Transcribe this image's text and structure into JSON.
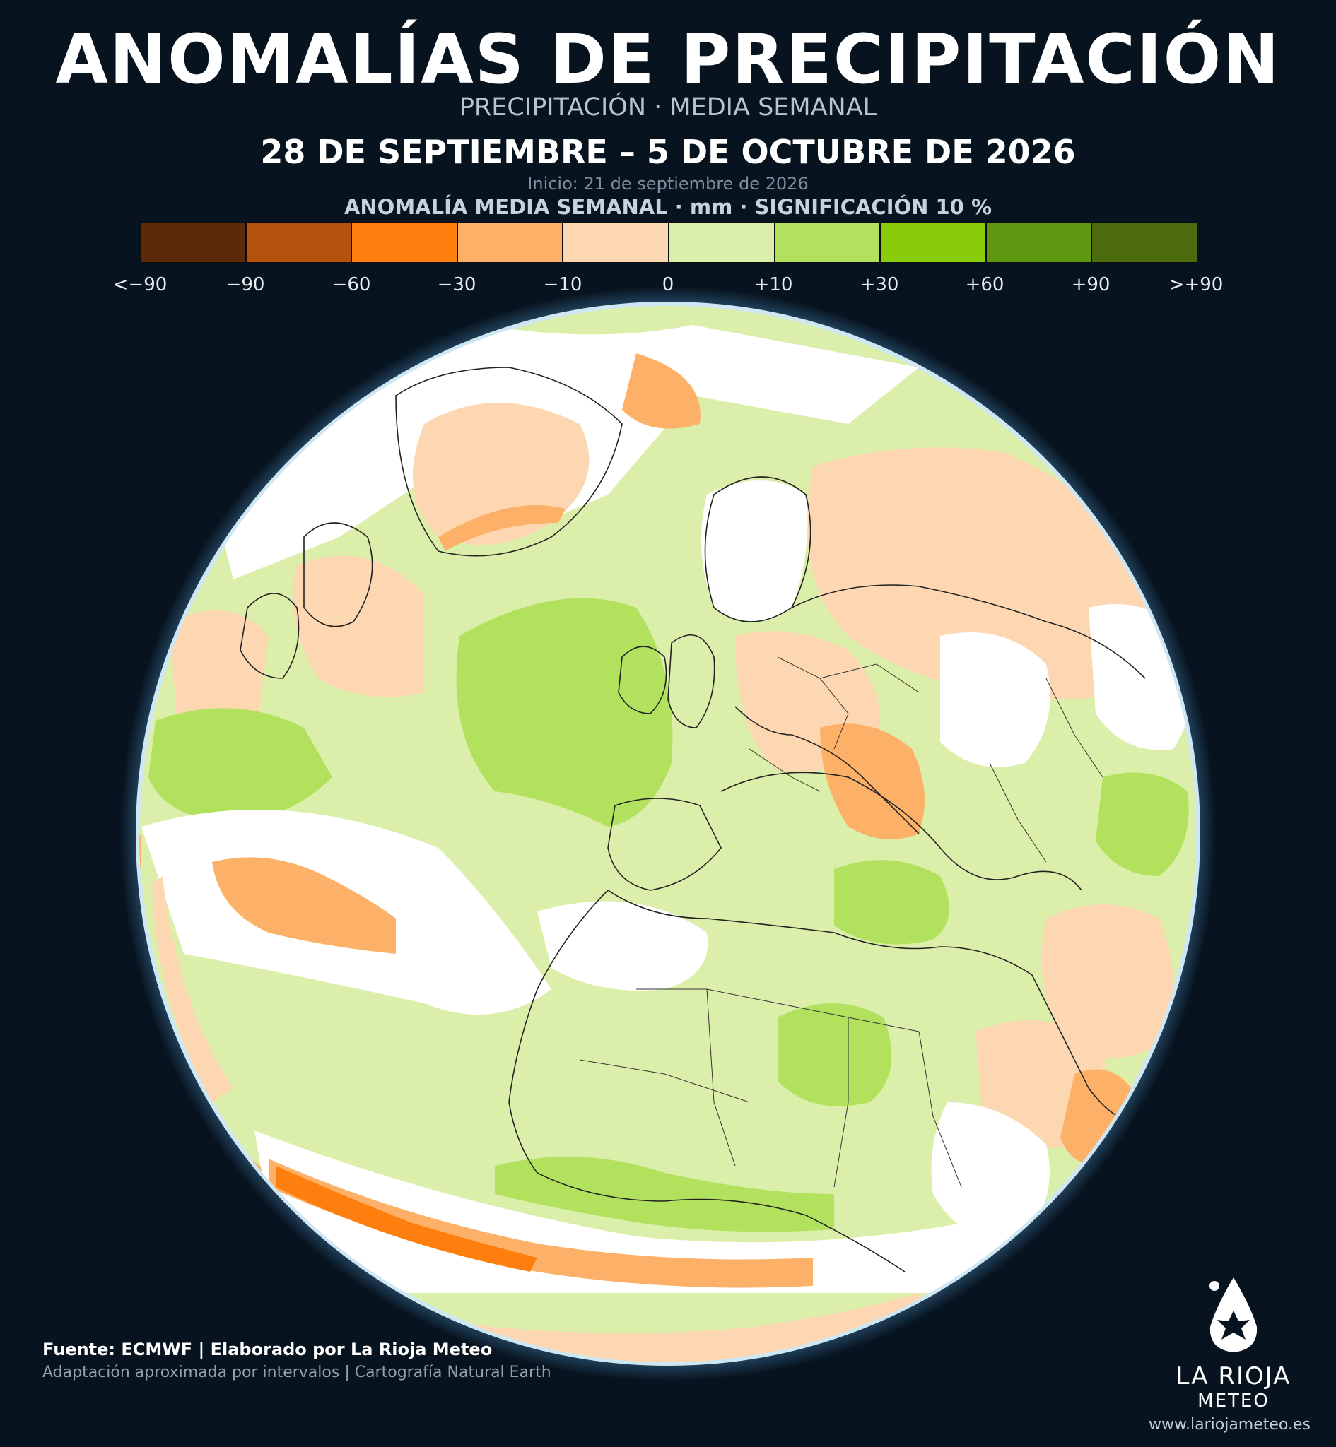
{
  "header": {
    "title": "ANOMALÍAS DE PRECIPITACIÓN",
    "subtitle": "PRECIPITACIÓN · MEDIA SEMANAL",
    "date_range": "28 DE SEPTIEMBRE – 5 DE OCTUBRE DE 2026",
    "init_date": "Inicio: 21 de septiembre de 2026"
  },
  "legend": {
    "title": "ANOMALÍA MEDIA SEMANAL · mm · SIGNIFICACIÓN 10 %",
    "colors": [
      "#5a2a0a",
      "#b5530e",
      "#ff7f0e",
      "#fdb168",
      "#fdd7b1",
      "#dcefaa",
      "#b2e15e",
      "#88cc0a",
      "#5e9810",
      "#4c6b0c"
    ],
    "ticks": [
      "<−90",
      "−90",
      "−60",
      "−30",
      "−10",
      "0",
      "+10",
      "+30",
      "+60",
      "+90",
      ">+90"
    ]
  },
  "map": {
    "projection": "orthographic",
    "center": "Atlántico Norte / Europa occidental / África",
    "ocean_no_signal_color": "#ffffff",
    "land_no_signal_color": "#ffffff",
    "border_color": "#222222"
  },
  "footer": {
    "source": "Fuente: ECMWF | Elaborado por La Rioja Meteo",
    "note": "Adaptación aproximada por intervalos | Cartografía Natural Earth"
  },
  "logo": {
    "name": "LA RIOJA",
    "sub": "METEO",
    "icon": "drop-logo-icon"
  },
  "url": "www.lariojameteo.es"
}
